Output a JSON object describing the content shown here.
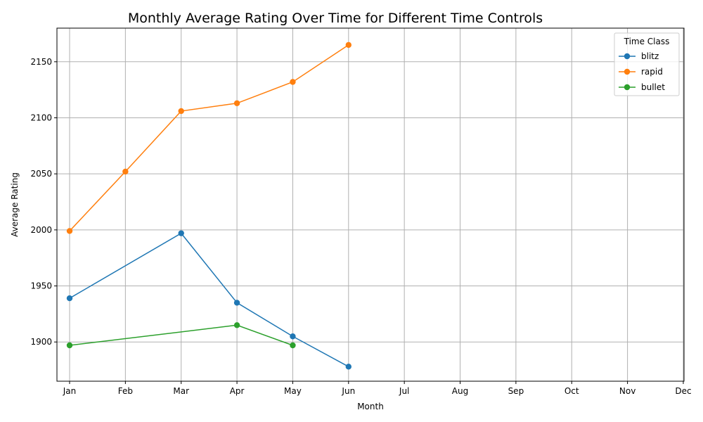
{
  "chart_data": {
    "type": "line",
    "title": "Monthly Average Rating Over Time for Different Time Controls",
    "xlabel": "Month",
    "ylabel": "Average Rating",
    "categories": [
      "Jan",
      "Feb",
      "Mar",
      "Apr",
      "May",
      "Jun",
      "Jul",
      "Aug",
      "Sep",
      "Oct",
      "Nov",
      "Dec"
    ],
    "ylim": [
      1865,
      2180
    ],
    "yticks": [
      1900,
      1950,
      2000,
      2050,
      2100,
      2150
    ],
    "grid": true,
    "legend_title": "Time Class",
    "legend_position": "top-right",
    "series": [
      {
        "name": "blitz",
        "color": "#1f77b4",
        "points": [
          [
            1,
            1939
          ],
          [
            3,
            1997
          ],
          [
            4,
            1935
          ],
          [
            5,
            1905
          ],
          [
            6,
            1878
          ]
        ]
      },
      {
        "name": "rapid",
        "color": "#ff7f0e",
        "points": [
          [
            1,
            1999
          ],
          [
            2,
            2052
          ],
          [
            3,
            2106
          ],
          [
            4,
            2113
          ],
          [
            5,
            2132
          ],
          [
            6,
            2165
          ]
        ]
      },
      {
        "name": "bullet",
        "color": "#2ca02c",
        "points": [
          [
            1,
            1897
          ],
          [
            4,
            1915
          ],
          [
            5,
            1897
          ]
        ]
      }
    ]
  }
}
